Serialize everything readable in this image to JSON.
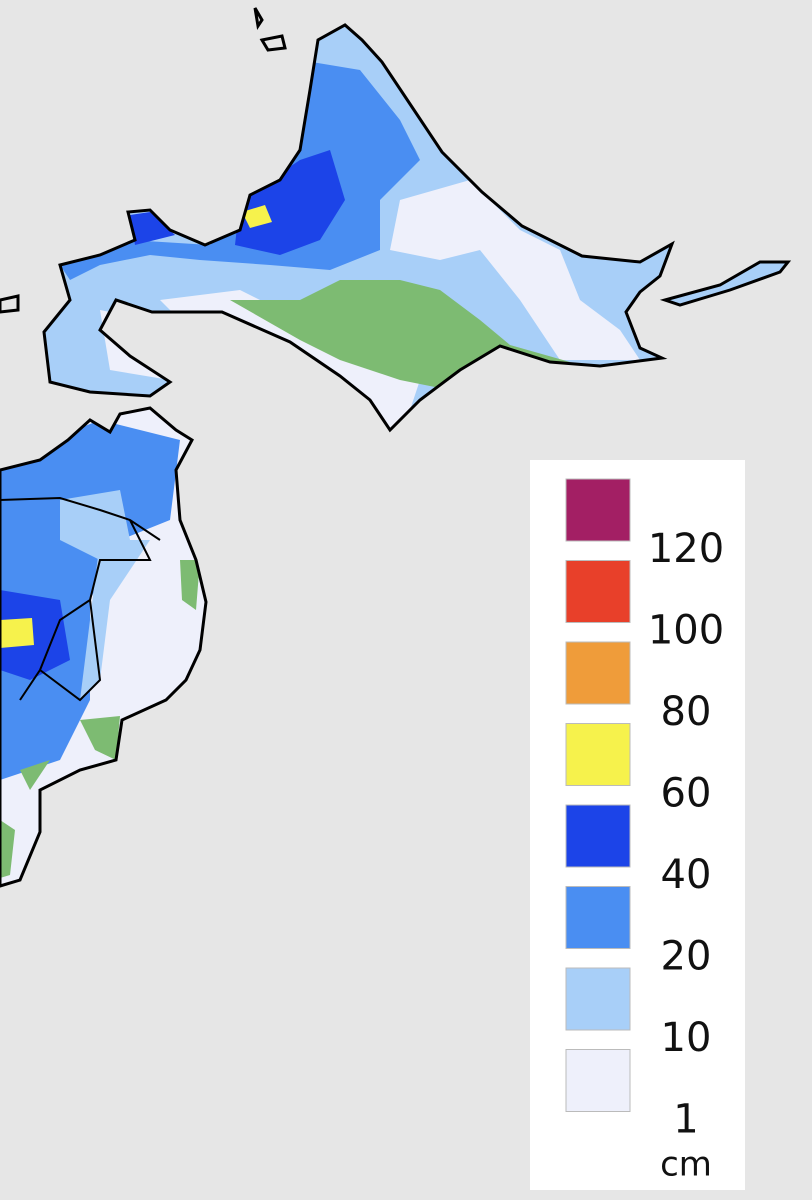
{
  "legend": {
    "swatches": [
      {
        "color": "#a31f64"
      },
      {
        "color": "#e8402a"
      },
      {
        "color": "#ef9c3a"
      },
      {
        "color": "#f6f24c"
      },
      {
        "color": "#1c44e8"
      },
      {
        "color": "#4a8ef2"
      },
      {
        "color": "#a8cff8"
      },
      {
        "color": "#eef0fb"
      }
    ],
    "labels": [
      "120",
      "100",
      "80",
      "60",
      "40",
      "20",
      "10",
      "1"
    ],
    "unit": "cm"
  }
}
